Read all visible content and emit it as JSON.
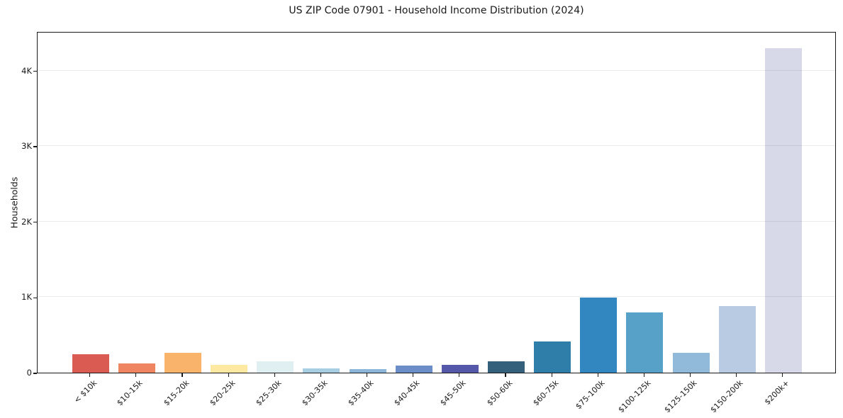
{
  "figure": {
    "background": "#ffffff"
  },
  "chart_data": {
    "type": "bar",
    "title": "US ZIP Code 07901 - Household Income Distribution (2024)",
    "xlabel": "",
    "ylabel": "Households",
    "categories": [
      "< $10k",
      "$10-15k",
      "$15-20k",
      "$20-25k",
      "$25-30k",
      "$30-35k",
      "$35-40k",
      "$40-45k",
      "$45-50k",
      "$50-60k",
      "$60-75k",
      "$75-100k",
      "$100-125k",
      "$125-150k",
      "$150-200k",
      "$200k+"
    ],
    "values": [
      245,
      120,
      260,
      100,
      155,
      60,
      50,
      90,
      105,
      150,
      415,
      995,
      795,
      265,
      880,
      4300
    ],
    "bar_colors": [
      "#d95b52",
      "#ef8560",
      "#fab36a",
      "#fde9a1",
      "#e0f0f2",
      "#a8cee3",
      "#8cb6d9",
      "#6b8ec8",
      "#5557a8",
      "#34607b",
      "#2f7ea9",
      "#3287c0",
      "#57a1c9",
      "#90b9da",
      "#b9cbe2",
      "#d8d9e8"
    ],
    "ylim": [
      0,
      4520
    ],
    "yticks": [
      {
        "value": 0,
        "label": "0"
      },
      {
        "value": 1000,
        "label": "1K"
      },
      {
        "value": 2000,
        "label": "2K"
      },
      {
        "value": 3000,
        "label": "3K"
      },
      {
        "value": 4000,
        "label": "4K"
      }
    ],
    "grid": {
      "axis": "y",
      "color": "rgba(0,0,0,0.08)"
    },
    "legend": "none",
    "x_tick_rotation_deg": 45,
    "spine_color": "#1a1a1a"
  }
}
